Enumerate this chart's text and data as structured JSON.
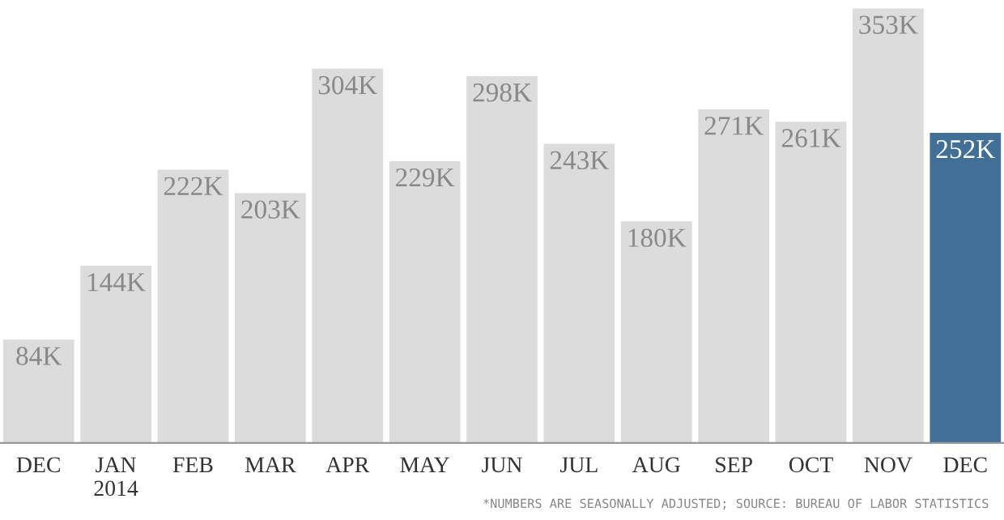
{
  "chart_data": {
    "type": "bar",
    "categories": [
      "DEC",
      "JAN\n2014",
      "FEB",
      "MAR",
      "APR",
      "MAY",
      "JUN",
      "JUL",
      "AUG",
      "SEP",
      "OCT",
      "NOV",
      "DEC"
    ],
    "values": [
      84,
      144,
      222,
      203,
      304,
      229,
      298,
      243,
      180,
      271,
      261,
      353,
      252
    ],
    "value_labels": [
      "84K",
      "144K",
      "222K",
      "203K",
      "304K",
      "229K",
      "298K",
      "243K",
      "180K",
      "271K",
      "261K",
      "353K",
      "252K"
    ],
    "colors": [
      "#dcdcdc",
      "#dcdcdc",
      "#dcdcdc",
      "#dcdcdc",
      "#dcdcdc",
      "#dcdcdc",
      "#dcdcdc",
      "#dcdcdc",
      "#dcdcdc",
      "#dcdcdc",
      "#dcdcdc",
      "#dcdcdc",
      "#416f95"
    ],
    "annotations": [
      "*NUMBERS ARE SEASONALLY ADJUSTED; SOURCE: BUREAU OF LABOR STATISTICS"
    ],
    "grid": false,
    "legend": false
  }
}
